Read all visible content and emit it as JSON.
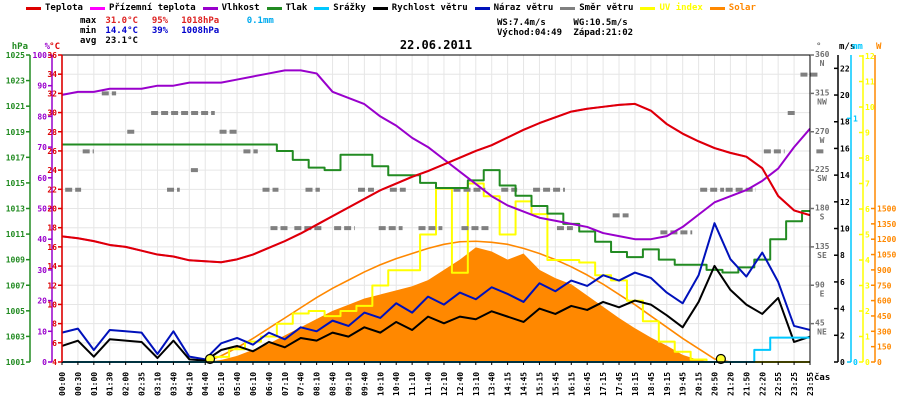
{
  "title": "22.06.2011",
  "colors": {
    "temp": "#dd0000",
    "ground": "#ff00ff",
    "humidity": "#9900cc",
    "pressure": "#228b22",
    "rain": "#00c8ff",
    "wind": "#000000",
    "gust": "#0011bb",
    "dir": "#808080",
    "uv": "#ffff00",
    "solar": "#ff8800",
    "grid": "#e6e6e6",
    "border": "#000000",
    "stat_max": "#dd2222",
    "stat_min": "#0000cc",
    "stat_rain": "#00aaee"
  },
  "legend": {
    "items": [
      {
        "label": "Teplota",
        "color": "#dd0000",
        "text_color": "#000000"
      },
      {
        "label": "Přízemní teplota",
        "color": "#ff00ff",
        "text_color": "#000000"
      },
      {
        "label": "Vlhkost",
        "color": "#9900cc",
        "text_color": "#000000"
      },
      {
        "label": "Tlak",
        "color": "#228b22",
        "text_color": "#000000"
      },
      {
        "label": "Srážky",
        "color": "#00c8ff",
        "text_color": "#000000"
      },
      {
        "label": "Rychlost větru",
        "color": "#000000",
        "text_color": "#000000"
      },
      {
        "label": "Náraz větru",
        "color": "#0011bb",
        "text_color": "#000000"
      },
      {
        "label": "Směr větru",
        "color": "#808080",
        "text_color": "#000000"
      },
      {
        "label": "UV index",
        "color": "#ffff00",
        "text_color": "#ffff00"
      },
      {
        "label": "Solar",
        "color": "#ff8800",
        "text_color": "#ff8800"
      }
    ]
  },
  "stats": {
    "max": {
      "label": "max",
      "temp": "31.0°C",
      "humidity": "95%",
      "pressure": "1018hPa",
      "rain": "0.1mm"
    },
    "min": {
      "label": "min",
      "temp": "14.4°C",
      "humidity": "39%",
      "pressure": "1008hPa"
    },
    "avg": {
      "label": "avg",
      "temp": "23.1°C"
    },
    "wind": {
      "ws": "WS:7.4m/s",
      "wg": "WG:10.5m/s"
    },
    "sun": {
      "rise": "Východ:04:49",
      "set": "Západ:21:02"
    }
  },
  "chart_data": {
    "type": "line",
    "x_label": "čas",
    "times": [
      "00:00",
      "00:30",
      "01:00",
      "01:30",
      "02:00",
      "02:35",
      "03:10",
      "03:40",
      "04:10",
      "04:40",
      "05:10",
      "05:40",
      "06:10",
      "06:40",
      "07:10",
      "07:40",
      "08:10",
      "08:40",
      "09:10",
      "09:40",
      "10:10",
      "10:40",
      "11:10",
      "11:40",
      "12:10",
      "12:40",
      "13:10",
      "13:40",
      "14:15",
      "14:45",
      "15:15",
      "15:45",
      "16:15",
      "16:45",
      "17:15",
      "17:45",
      "18:15",
      "18:45",
      "19:15",
      "19:45",
      "20:15",
      "20:50",
      "21:20",
      "21:50",
      "22:20",
      "22:55",
      "23:25",
      "23:55"
    ],
    "axes_scales": {
      "temp": {
        "min": 4,
        "max": 36
      },
      "hum": {
        "min": 0,
        "max": 100
      },
      "pres": {
        "min": 1001,
        "max": 1025
      },
      "ms": {
        "min": 0,
        "max": 23
      },
      "mm": {
        "min": 0,
        "max": 1.26
      },
      "uv": {
        "min": 0,
        "max": 12.04
      },
      "w": {
        "min": 0,
        "max": 3000
      },
      "deg": {
        "min": 0,
        "max": 360
      }
    },
    "left_axes": [
      {
        "unit": "hPa",
        "color": "#228b22",
        "scale": "pres",
        "tick_min": 1001,
        "tick_max": 1025,
        "tick_step": 2
      },
      {
        "unit": "%",
        "color": "#9900cc",
        "scale": "hum",
        "tick_min": 0,
        "tick_max": 100,
        "tick_step": 10
      },
      {
        "unit": "°C",
        "color": "#dd0000",
        "scale": "temp",
        "tick_min": 4,
        "tick_max": 36,
        "tick_step": 2
      }
    ],
    "right_axes": [
      {
        "unit": "°",
        "color": "#707070",
        "scale": "deg",
        "dir_labels": [
          {
            "deg": 360,
            "num": "360",
            "name": "N"
          },
          {
            "deg": 315,
            "num": "315",
            "name": "NW"
          },
          {
            "deg": 270,
            "num": "270",
            "name": "W"
          },
          {
            "deg": 225,
            "num": "225",
            "name": "SW"
          },
          {
            "deg": 180,
            "num": "180",
            "name": "S"
          },
          {
            "deg": 135,
            "num": "135",
            "name": "SE"
          },
          {
            "deg": 90,
            "num": "90",
            "name": "E"
          },
          {
            "deg": 45,
            "num": "45",
            "name": "NE"
          }
        ]
      },
      {
        "unit": "m/s",
        "color": "#000000",
        "scale": "ms",
        "tick_min": 0,
        "tick_max": 22,
        "tick_step": 2
      },
      {
        "unit": "mm",
        "color": "#00c8ff",
        "scale": "mm",
        "tick_min": 0,
        "tick_max": 1,
        "tick_step": 1
      },
      {
        "unit": "",
        "color": "#ffff00",
        "scale": "uv",
        "tick_min": 0,
        "tick_max": 12,
        "tick_step": 1
      },
      {
        "unit": "W",
        "color": "#ff8800",
        "scale": "w",
        "tick_min": 0,
        "tick_max": 1500,
        "tick_step": 150
      }
    ],
    "series": [
      {
        "name": "Solar",
        "key": "solar",
        "scale": "w",
        "color": "#ff8800",
        "style": "area",
        "values": [
          0,
          0,
          0,
          0,
          0,
          0,
          0,
          0,
          0,
          0,
          20,
          60,
          120,
          180,
          260,
          340,
          420,
          500,
          560,
          620,
          660,
          700,
          740,
          800,
          900,
          1000,
          1120,
          1080,
          1000,
          1060,
          900,
          820,
          760,
          650,
          540,
          430,
          330,
          240,
          160,
          70,
          20,
          0,
          0,
          0,
          0,
          0,
          0,
          0
        ]
      },
      {
        "name": "Solar max",
        "key": "solar_max",
        "scale": "w",
        "color": "#ff8800",
        "style": "line",
        "width": 1.6,
        "values": [
          0,
          0,
          0,
          0,
          0,
          0,
          0,
          0,
          0,
          0,
          60,
          140,
          230,
          330,
          430,
          530,
          630,
          720,
          800,
          880,
          950,
          1010,
          1060,
          1110,
          1150,
          1175,
          1180,
          1170,
          1150,
          1110,
          1060,
          1000,
          930,
          850,
          760,
          660,
          560,
          450,
          340,
          230,
          130,
          30,
          0,
          0,
          0,
          0,
          0,
          0
        ]
      },
      {
        "name": "UV index",
        "key": "uv",
        "scale": "uv",
        "color": "#ffff00",
        "style": "step",
        "width": 2,
        "values": [
          0,
          0,
          0,
          0,
          0,
          0,
          0,
          0,
          0,
          0,
          0.2,
          0.5,
          0.8,
          1.0,
          1.5,
          1.9,
          2.0,
          1.8,
          2.0,
          2.2,
          3.0,
          3.6,
          3.6,
          5.0,
          6.8,
          3.5,
          7.0,
          6.5,
          5.0,
          6.3,
          5.8,
          4.0,
          4.0,
          3.9,
          3.4,
          3.2,
          2.4,
          1.6,
          0.8,
          0.4,
          0.1,
          0,
          0,
          0,
          0,
          0,
          0,
          0
        ]
      },
      {
        "name": "Tlak",
        "key": "pressure",
        "scale": "pres",
        "color": "#228b22",
        "style": "step",
        "width": 2,
        "values": [
          1018,
          1018,
          1018,
          1018,
          1018,
          1018,
          1018,
          1018,
          1018,
          1018,
          1018,
          1018,
          1018,
          1018,
          1017.5,
          1016.8,
          1016.2,
          1016.0,
          1017.2,
          1017.2,
          1016.3,
          1015.6,
          1015.6,
          1015.0,
          1014.6,
          1014.6,
          1015.2,
          1016.0,
          1014.8,
          1014.0,
          1013.2,
          1012.6,
          1011.8,
          1011.2,
          1010.4,
          1009.6,
          1009.2,
          1009.8,
          1009.0,
          1008.6,
          1008.6,
          1008.2,
          1008.0,
          1008.4,
          1009.0,
          1010.6,
          1012.0,
          1012.8
        ]
      },
      {
        "name": "Vlhkost",
        "key": "humidity",
        "scale": "hum",
        "color": "#9900cc",
        "style": "line",
        "width": 2,
        "values": [
          87,
          88,
          88,
          89,
          89,
          89,
          90,
          90,
          91,
          91,
          91,
          92,
          93,
          94,
          95,
          95,
          94,
          88,
          86,
          84,
          80,
          77,
          73,
          70,
          66,
          62,
          58,
          54,
          51,
          49,
          47,
          46,
          45,
          44,
          42,
          41,
          40,
          40,
          41,
          44,
          48,
          52,
          54,
          56,
          59,
          63,
          70,
          76
        ]
      },
      {
        "name": "Náraz větru",
        "key": "gust",
        "scale": "ms",
        "color": "#0011bb",
        "style": "line",
        "width": 2,
        "values": [
          2.2,
          2.5,
          0.9,
          2.4,
          2.3,
          2.2,
          0.6,
          2.3,
          0.4,
          0.2,
          1.4,
          1.8,
          1.3,
          2.2,
          1.7,
          2.6,
          2.3,
          3.1,
          2.7,
          3.7,
          3.3,
          4.4,
          3.7,
          4.9,
          4.3,
          5.2,
          4.7,
          5.6,
          5.1,
          4.5,
          5.9,
          5.3,
          6.1,
          5.7,
          6.5,
          6.1,
          6.7,
          6.3,
          5.2,
          4.4,
          6.5,
          10.4,
          7.7,
          6.4,
          8.2,
          6.0,
          2.7,
          2.4
        ]
      },
      {
        "name": "Rychlost větru",
        "key": "wind",
        "scale": "ms",
        "color": "#000000",
        "style": "line",
        "width": 2,
        "values": [
          1.2,
          1.6,
          0.4,
          1.7,
          1.6,
          1.5,
          0.3,
          1.6,
          0.2,
          0.1,
          0.9,
          1.2,
          0.8,
          1.5,
          1.1,
          1.8,
          1.6,
          2.2,
          1.9,
          2.6,
          2.2,
          3.0,
          2.4,
          3.4,
          2.9,
          3.4,
          3.2,
          3.8,
          3.4,
          3.0,
          4.0,
          3.6,
          4.2,
          3.9,
          4.5,
          4.1,
          4.6,
          4.3,
          3.5,
          2.6,
          4.5,
          7.2,
          5.4,
          4.3,
          3.6,
          4.8,
          1.5,
          1.9
        ]
      },
      {
        "name": "Přízemní teplota",
        "key": "ground_temp",
        "scale": "temp",
        "color": "#ff00ff",
        "style": "line",
        "width": 2,
        "values": [
          17.1,
          16.9,
          16.6,
          16.2,
          16.0,
          15.6,
          15.2,
          15.0,
          14.6,
          14.5,
          14.4,
          14.7,
          15.2,
          15.9,
          16.6,
          17.4,
          18.3,
          19.2,
          20.1,
          21.0,
          21.9,
          22.6,
          23.3,
          23.9,
          24.6,
          25.3,
          26.0,
          26.6,
          27.4,
          28.2,
          28.9,
          29.5,
          30.1,
          30.4,
          30.6,
          30.8,
          30.9,
          30.2,
          28.8,
          27.8,
          27.0,
          26.3,
          25.8,
          25.4,
          24.2,
          21.3,
          19.8,
          19.3
        ]
      },
      {
        "name": "Teplota",
        "key": "temp",
        "scale": "temp",
        "color": "#dd0000",
        "style": "line",
        "width": 2,
        "values": [
          17.1,
          16.9,
          16.6,
          16.2,
          16.0,
          15.6,
          15.2,
          15.0,
          14.6,
          14.5,
          14.4,
          14.7,
          15.2,
          15.9,
          16.6,
          17.4,
          18.3,
          19.2,
          20.1,
          21.0,
          21.9,
          22.6,
          23.3,
          23.9,
          24.6,
          25.3,
          26.0,
          26.6,
          27.4,
          28.2,
          28.9,
          29.5,
          30.1,
          30.4,
          30.6,
          30.8,
          30.9,
          30.2,
          28.8,
          27.8,
          27.0,
          26.3,
          25.8,
          25.4,
          24.2,
          21.3,
          19.8,
          19.3
        ]
      },
      {
        "name": "Srážky",
        "key": "rain",
        "scale": "mm",
        "color": "#00c8ff",
        "style": "step",
        "width": 2,
        "values": [
          0,
          0,
          0,
          0,
          0,
          0,
          0,
          0,
          0,
          0,
          0,
          0,
          0,
          0,
          0,
          0,
          0,
          0,
          0,
          0,
          0,
          0,
          0,
          0,
          0,
          0,
          0,
          0,
          0,
          0,
          0,
          0,
          0,
          0,
          0,
          0,
          0,
          0,
          0,
          0,
          0,
          0,
          0,
          0,
          0.05,
          0.1,
          0.1,
          0.1
        ]
      }
    ],
    "direction_segments": [
      {
        "from": 0.2,
        "to": 1.2,
        "deg": 202
      },
      {
        "from": 1.3,
        "to": 2.0,
        "deg": 247
      },
      {
        "from": 2.5,
        "to": 3.4,
        "deg": 315
      },
      {
        "from": 4.1,
        "to": 4.7,
        "deg": 270
      },
      {
        "from": 5.6,
        "to": 9.6,
        "deg": 292
      },
      {
        "from": 6.6,
        "to": 7.4,
        "deg": 202
      },
      {
        "from": 8.1,
        "to": 8.7,
        "deg": 225
      },
      {
        "from": 9.9,
        "to": 11.0,
        "deg": 270
      },
      {
        "from": 11.4,
        "to": 12.3,
        "deg": 247
      },
      {
        "from": 12.6,
        "to": 13.6,
        "deg": 202
      },
      {
        "from": 13.1,
        "to": 14.3,
        "deg": 157
      },
      {
        "from": 14.6,
        "to": 16.4,
        "deg": 157
      },
      {
        "from": 15.3,
        "to": 16.2,
        "deg": 202
      },
      {
        "from": 17.1,
        "to": 18.4,
        "deg": 157
      },
      {
        "from": 18.6,
        "to": 19.6,
        "deg": 202
      },
      {
        "from": 19.9,
        "to": 21.4,
        "deg": 157
      },
      {
        "from": 20.6,
        "to": 21.6,
        "deg": 202
      },
      {
        "from": 22.4,
        "to": 23.9,
        "deg": 157
      },
      {
        "from": 24.6,
        "to": 26.6,
        "deg": 202
      },
      {
        "from": 25.1,
        "to": 26.9,
        "deg": 157
      },
      {
        "from": 27.6,
        "to": 28.6,
        "deg": 202
      },
      {
        "from": 29.6,
        "to": 31.6,
        "deg": 202
      },
      {
        "from": 31.1,
        "to": 32.1,
        "deg": 157
      },
      {
        "from": 34.6,
        "to": 35.6,
        "deg": 172
      },
      {
        "from": 37.6,
        "to": 39.6,
        "deg": 152
      },
      {
        "from": 40.1,
        "to": 41.6,
        "deg": 202
      },
      {
        "from": 41.7,
        "to": 43.6,
        "deg": 202
      },
      {
        "from": 44.1,
        "to": 45.4,
        "deg": 247
      },
      {
        "from": 45.6,
        "to": 46.1,
        "deg": 292
      },
      {
        "from": 46.4,
        "to": 47.6,
        "deg": 337
      },
      {
        "from": 47.4,
        "to": 47.9,
        "deg": 247
      }
    ],
    "sun_markers": [
      {
        "time": "04:49",
        "idx": 9.3
      },
      {
        "time": "21:02",
        "idx": 41.4
      }
    ]
  }
}
